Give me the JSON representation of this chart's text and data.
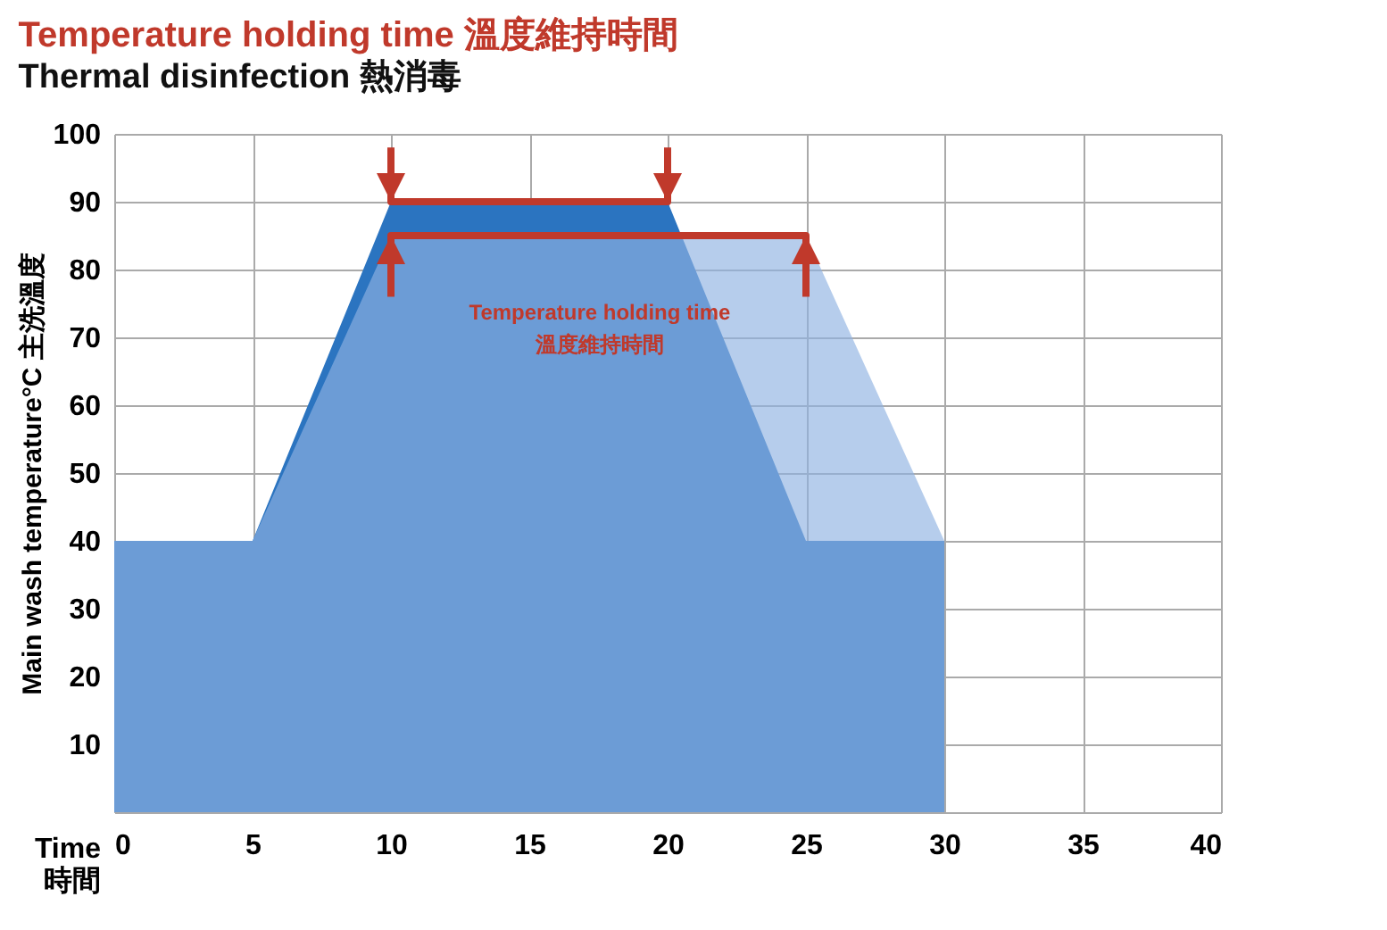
{
  "chart_data": {
    "type": "area",
    "title": "Temperature holding time 溫度維持時間",
    "subtitle": "Thermal disinfection 熱消毒",
    "xlabel": "Time\n時間",
    "ylabel": "Main wash temperature°C 主洗溫度",
    "xlim": [
      0,
      40
    ],
    "xticks": [
      0,
      5,
      10,
      15,
      20,
      25,
      30,
      35,
      40
    ],
    "ylim": [
      0,
      100
    ],
    "yticks": [
      {
        "value": 0,
        "label": null
      },
      10,
      20,
      30,
      40,
      50,
      60,
      70,
      80,
      90,
      100
    ],
    "grid": true,
    "series": [
      {
        "color": "#2b74c0",
        "x": [
          0,
          5,
          10,
          20,
          25,
          30
        ],
        "values": [
          40,
          40,
          90,
          90,
          40,
          40
        ]
      },
      {
        "color": "#8fb2e2",
        "x": [
          0,
          5,
          10,
          25,
          30
        ],
        "values": [
          40,
          40,
          85,
          85,
          40
        ]
      },
      {
        "type": "line",
        "color": "#c0392b",
        "x": [
          10,
          10,
          20,
          20
        ],
        "values": [
          98,
          90,
          90,
          98
        ]
      },
      {
        "type": "line",
        "color": "#c0392b",
        "x": [
          10,
          10,
          25,
          25
        ],
        "values": [
          76,
          85,
          85,
          76
        ]
      }
    ],
    "annotations": [
      "Temperature holding time\n溫度維持時間"
    ]
  }
}
